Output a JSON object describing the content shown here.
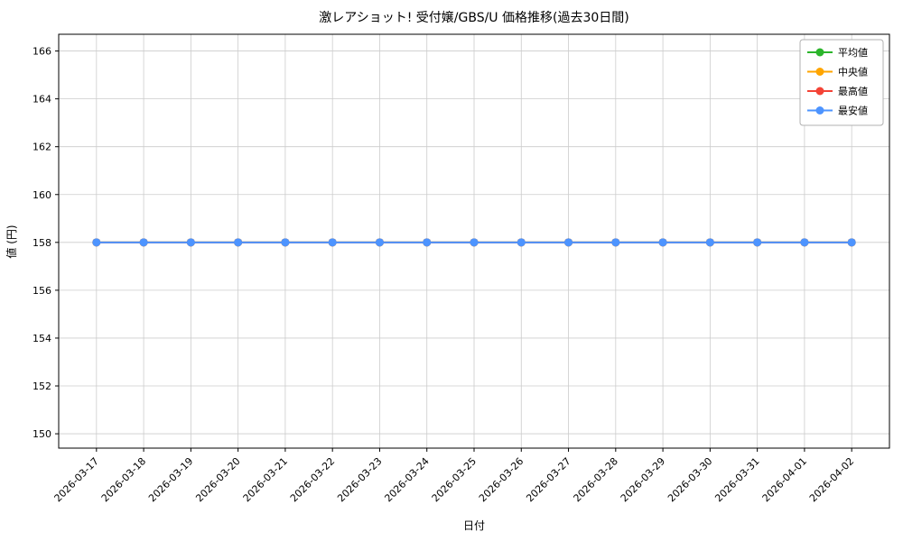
{
  "chart_data": {
    "type": "line",
    "title": "激レアショット! 受付嬢/GBS/U 価格推移(過去30日間)",
    "xlabel": "日付",
    "ylabel": "値 (円)",
    "categories": [
      "2026-03-17",
      "2026-03-18",
      "2026-03-19",
      "2026-03-20",
      "2026-03-21",
      "2026-03-22",
      "2026-03-23",
      "2026-03-24",
      "2026-03-25",
      "2026-03-26",
      "2026-03-27",
      "2026-03-28",
      "2026-03-29",
      "2026-03-30",
      "2026-03-31",
      "2026-04-01",
      "2026-04-02"
    ],
    "series": [
      {
        "name": "平均値",
        "color": "#2cb52c",
        "values": [
          158,
          158,
          158,
          158,
          158,
          158,
          158,
          158,
          158,
          158,
          158,
          158,
          158,
          158,
          158,
          158,
          158
        ]
      },
      {
        "name": "中央値",
        "color": "#ffa500",
        "values": [
          158,
          158,
          158,
          158,
          158,
          158,
          158,
          158,
          158,
          158,
          158,
          158,
          158,
          158,
          158,
          158,
          158
        ]
      },
      {
        "name": "最高値",
        "color": "#f44336",
        "values": [
          158,
          158,
          158,
          158,
          158,
          158,
          158,
          158,
          158,
          158,
          158,
          158,
          158,
          158,
          158,
          158,
          158
        ]
      },
      {
        "name": "最安値",
        "color": "#4d94ff",
        "values": [
          158,
          158,
          158,
          158,
          158,
          158,
          158,
          158,
          158,
          158,
          158,
          158,
          158,
          158,
          158,
          158,
          158
        ]
      }
    ],
    "yticks": [
      150,
      152,
      154,
      156,
      158,
      160,
      162,
      164,
      166
    ],
    "ylim": [
      149.4,
      166.7
    ],
    "grid": true,
    "legend_position": "upper right",
    "colors": {
      "grid": "#cccccc",
      "axis": "#000000",
      "legend_border": "#b0b0b0"
    }
  }
}
